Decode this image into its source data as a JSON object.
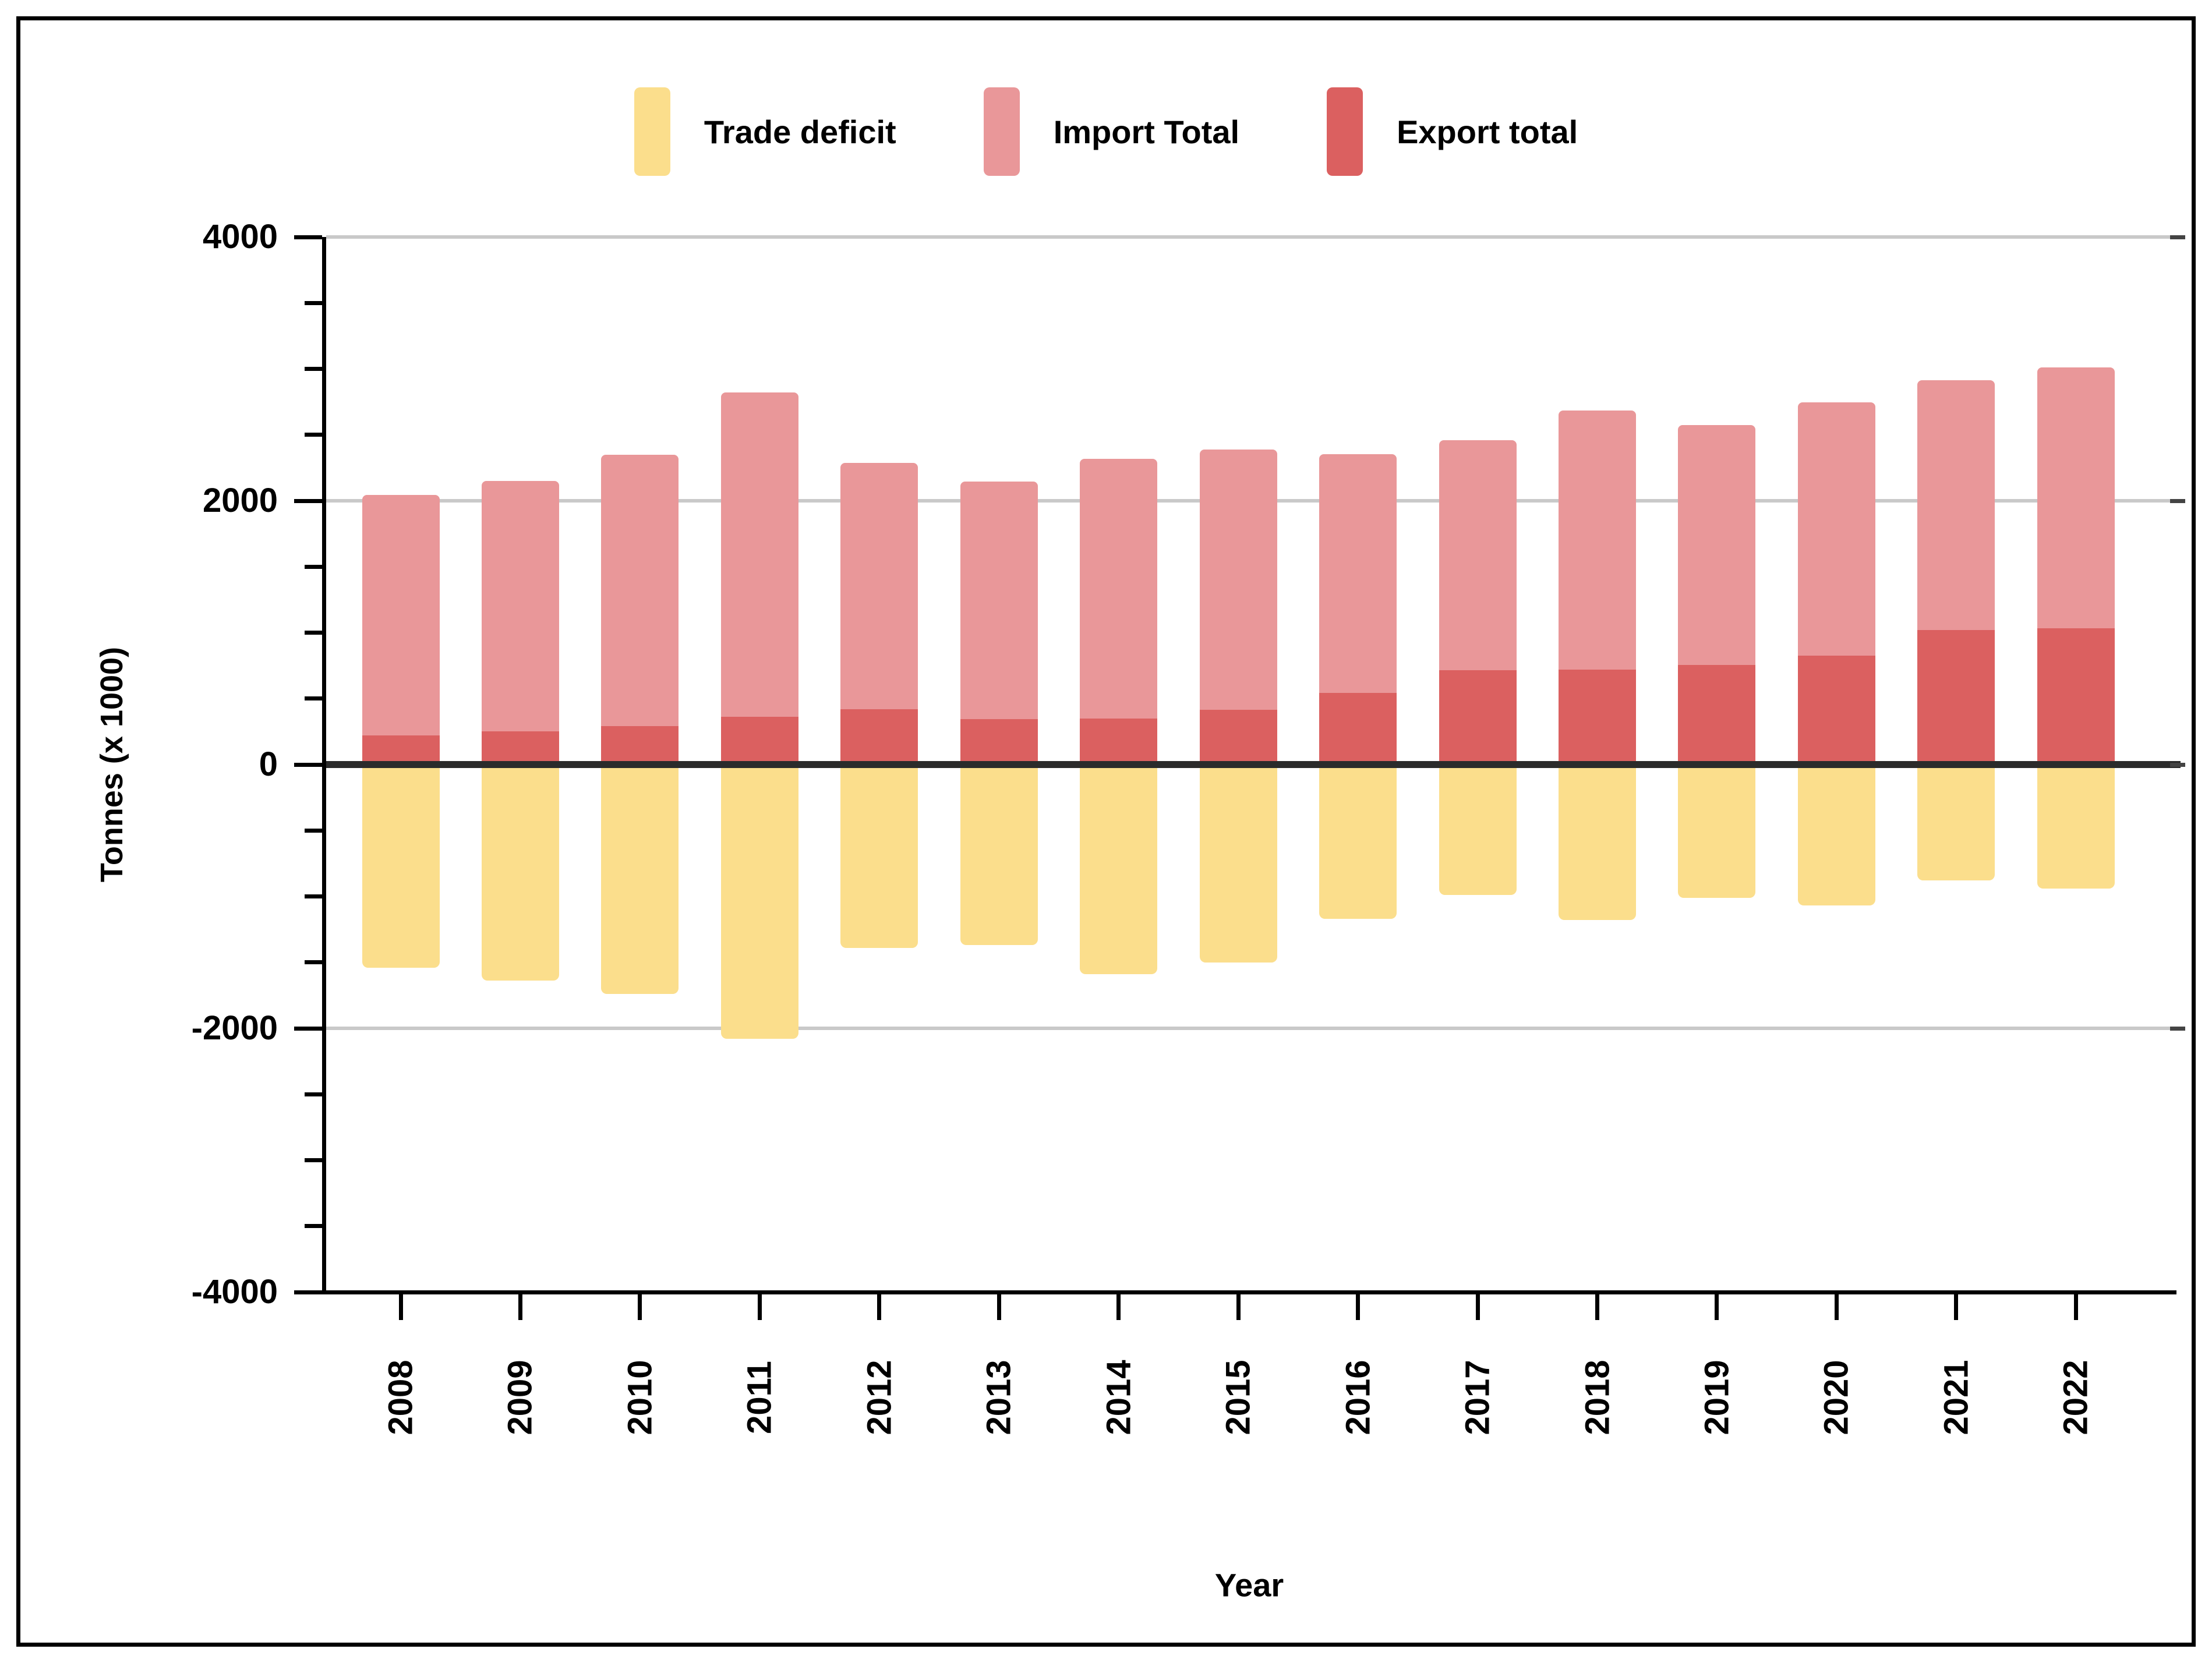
{
  "chart_data": {
    "type": "bar",
    "title": "",
    "xlabel": "Year",
    "ylabel": "Tonnes (x 1000)",
    "categories": [
      "2008",
      "2009",
      "2010",
      "2011",
      "2012",
      "2013",
      "2014",
      "2015",
      "2016",
      "2017",
      "2018",
      "2019",
      "2020",
      "2021",
      "2022"
    ],
    "series": [
      {
        "name": "Trade deficit",
        "color": "#FBDE8C",
        "values": [
          -1540,
          -1640,
          -1740,
          -2080,
          -1390,
          -1370,
          -1590,
          -1500,
          -1170,
          -990,
          -1180,
          -1010,
          -1070,
          -880,
          -940
        ]
      },
      {
        "name": "Import Total",
        "color": "#E99799",
        "values": [
          2045,
          2150,
          2350,
          2820,
          2285,
          2145,
          2320,
          2390,
          2355,
          2460,
          2685,
          2575,
          2745,
          2915,
          3010
        ]
      },
      {
        "name": "Export total",
        "color": "#DB6060",
        "values": [
          220,
          250,
          290,
          360,
          420,
          345,
          350,
          415,
          545,
          715,
          720,
          755,
          825,
          1020,
          1035
        ]
      }
    ],
    "stacking": "export drawn from zero to its value; import fill shown from export top up to import value; deficit drawn from zero down to its value",
    "ylim": [
      -4000,
      4000
    ],
    "y_major_ticks": [
      4000,
      2000,
      0,
      -2000,
      -4000
    ],
    "y_minor_tick_step": 500,
    "gridline_values": [
      4000,
      2000,
      -2000
    ],
    "zero_line": true,
    "grid": true,
    "legend_position": "top center"
  },
  "colors": {
    "background": "#ffffff",
    "grid": "#c9c9c9",
    "zero_line": "#2b2b2b",
    "axis": "#000000",
    "right_tick": "#444444"
  }
}
